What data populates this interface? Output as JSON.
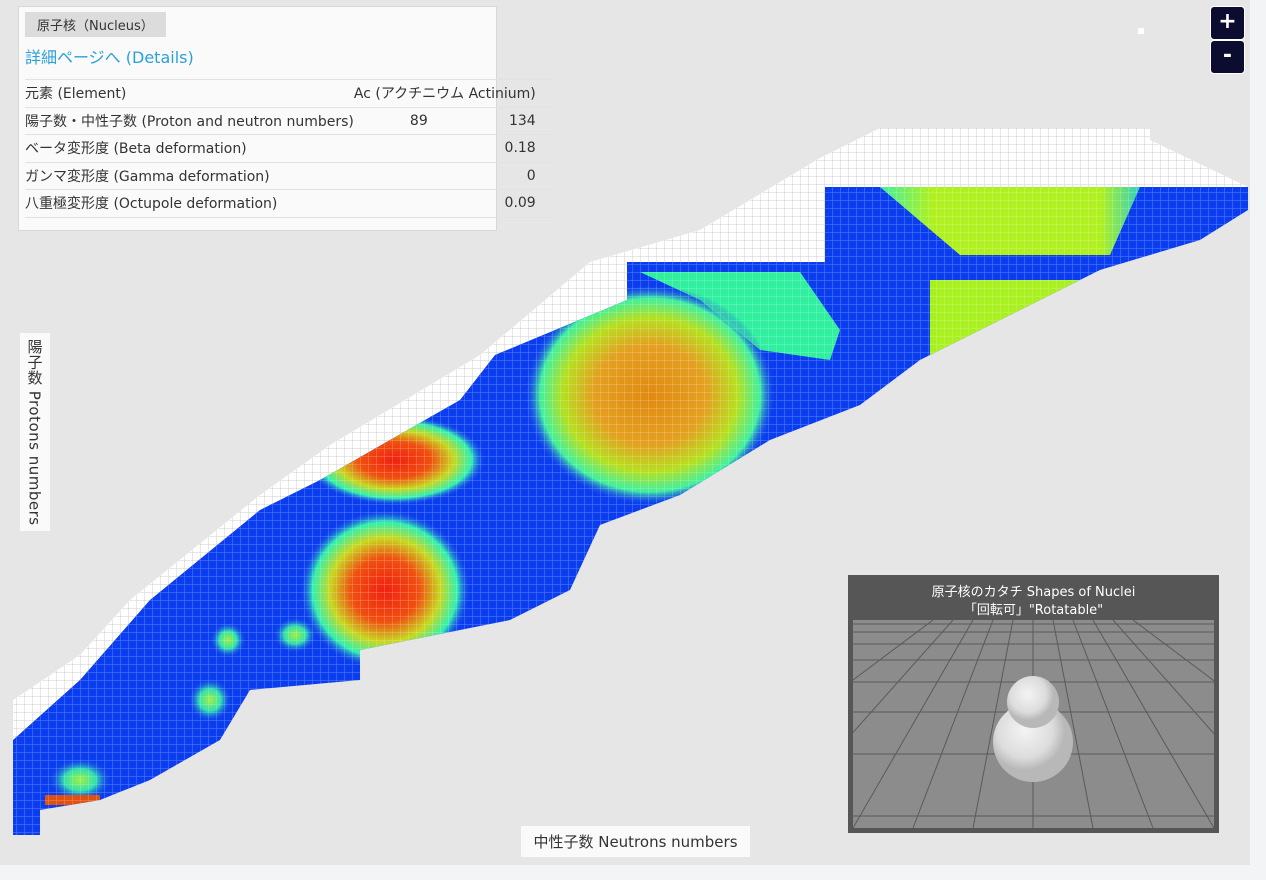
{
  "info_panel": {
    "tab": "原子核（Nucleus）",
    "link": "詳細ページへ (Details)",
    "rows": [
      [
        "元素 (Element)",
        "Ac (アクチニウム Actinium)"
      ],
      [
        "陽子数・中性子数 (Proton and neutron numbers)",
        89,
        134
      ],
      [
        "ベータ変形度 (Beta deformation)",
        0.18
      ],
      [
        "ガンマ変形度 (Gamma deformation)",
        0
      ],
      [
        "八重極変形度 (Octupole deformation)",
        0.09
      ]
    ]
  },
  "zoom": {
    "in": "+",
    "out": "-"
  },
  "axes": {
    "y_label": "陽子数 Protons numbers",
    "x_label": "中性子数 Neutrons numbers"
  },
  "shape_viewer": {
    "title": "原子核のカタチ Shapes of Nuclei",
    "subtitle": "「回転可」\"Rotatable\""
  }
}
